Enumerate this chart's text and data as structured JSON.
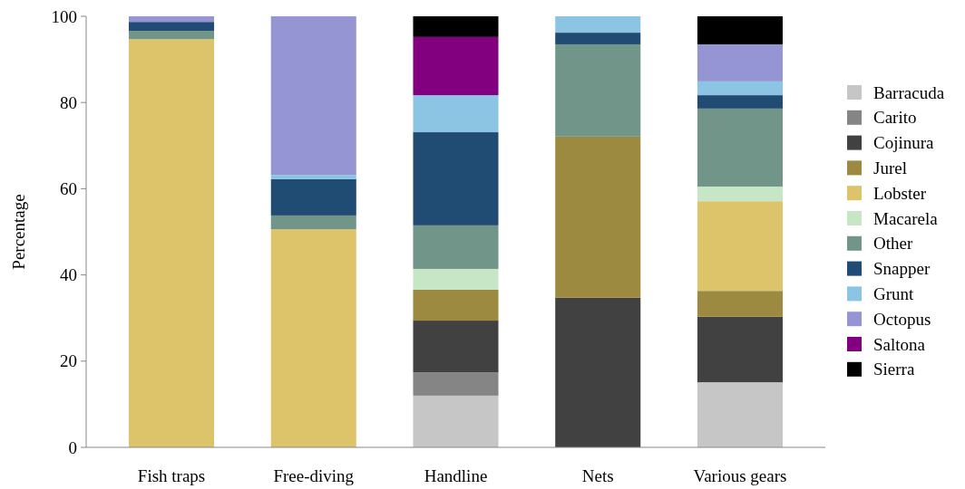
{
  "chart_data": {
    "type": "bar",
    "stacked": true,
    "ylabel": "Percentage",
    "categories": [
      "Fish traps",
      "Free-diving",
      "Handline",
      "Nets",
      "Various gears"
    ],
    "ylim": [
      0,
      100
    ],
    "yticks": [
      0,
      20,
      40,
      60,
      80,
      100
    ],
    "legend": "right",
    "grid": false,
    "series": [
      {
        "name": "Barracuda",
        "color": "#c6c6c6",
        "values": [
          0,
          0,
          12.0,
          0,
          15.1
        ]
      },
      {
        "name": "Carito",
        "color": "#858585",
        "values": [
          0,
          0,
          5.4,
          0,
          0
        ]
      },
      {
        "name": "Cojinura",
        "color": "#414141",
        "values": [
          0,
          0,
          12.0,
          34.7,
          15.2
        ]
      },
      {
        "name": "Jurel",
        "color": "#9d8a41",
        "values": [
          0,
          0,
          7.2,
          37.4,
          6.0
        ]
      },
      {
        "name": "Lobster",
        "color": "#ddc46b",
        "values": [
          94.7,
          50.6,
          0,
          0,
          20.8
        ]
      },
      {
        "name": "Macarela",
        "color": "#c6e6c5",
        "values": [
          0,
          0,
          4.8,
          0,
          3.4
        ]
      },
      {
        "name": "Other",
        "color": "#72958a",
        "values": [
          1.9,
          3.2,
          10.1,
          21.4,
          18.1
        ]
      },
      {
        "name": "Snapper",
        "color": "#204b73",
        "values": [
          2.1,
          8.4,
          21.6,
          2.7,
          3.1
        ]
      },
      {
        "name": "Grunt",
        "color": "#8cc4e4",
        "values": [
          0,
          1.0,
          8.6,
          3.8,
          3.2
        ]
      },
      {
        "name": "Octopus",
        "color": "#9695d3",
        "values": [
          1.3,
          36.8,
          0,
          0,
          8.6
        ]
      },
      {
        "name": "Saltona",
        "color": "#820080",
        "values": [
          0,
          0,
          13.5,
          0,
          0
        ]
      },
      {
        "name": "Sierra",
        "color": "#000000",
        "values": [
          0,
          0,
          4.8,
          0,
          6.5
        ]
      }
    ]
  }
}
